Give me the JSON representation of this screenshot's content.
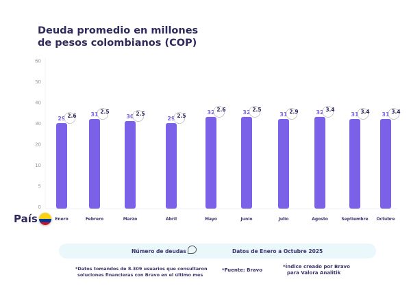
{
  "title_line1": "Deuda promedio en millones",
  "title_line2": "de pesos colombianos (COP)",
  "country_label": "País",
  "legend": {
    "series_label": "Número de deudas",
    "period": "Datos de Enero a Octubre 2025"
  },
  "notes": {
    "data_note_1": "*Datos tomandos de 8.309 usuarios que consultaron",
    "data_note_2": "soluciones financieras con Bravo en el último mes",
    "source": "*Fuente: Bravo",
    "index_1": "*Índice creado por Bravo",
    "index_2": "para Valora Analitik"
  },
  "chart_data": {
    "type": "bar",
    "title": "Deuda promedio en millones de pesos colombianos (COP)",
    "y_ticks": [
      0,
      5,
      10,
      20,
      30,
      40,
      50,
      60
    ],
    "categories": [
      "Enero",
      "Febrero",
      "Marzo",
      "Abril",
      "Mayo",
      "Junio",
      "Julio",
      "Agosto",
      "Septiembre",
      "Octubre"
    ],
    "values": [
      29,
      31,
      30,
      29,
      32,
      32,
      31,
      32,
      31,
      31
    ],
    "debt_counts": [
      2.6,
      2.5,
      2.5,
      2.5,
      2.6,
      2.5,
      2.9,
      3.4,
      3.4,
      3.4
    ],
    "bar_color": "#7b61e8",
    "grid": false
  }
}
